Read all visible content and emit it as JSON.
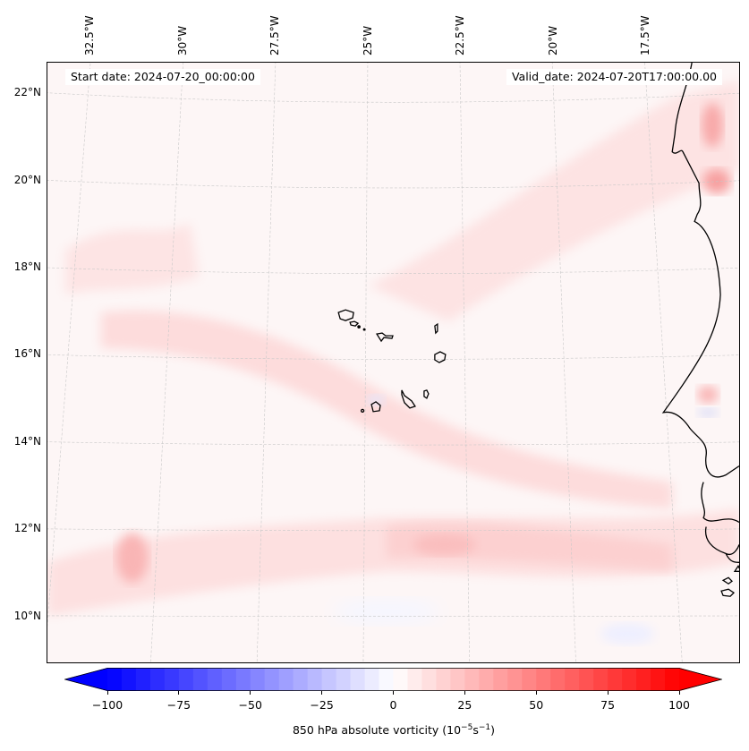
{
  "map": {
    "title_left": "Start date: 2024-07-20_00:00:00",
    "title_right": "Valid_date: 2024-07-20T17:00:00.00",
    "extent": {
      "lon_min": -33.0,
      "lon_max": -15.6,
      "lat_min": 8.8,
      "lat_max": 22.8
    },
    "lon_ticks": [
      {
        "value": -32.5,
        "label": "32.5°W"
      },
      {
        "value": -30.0,
        "label": "30°W"
      },
      {
        "value": -27.5,
        "label": "27.5°W"
      },
      {
        "value": -25.0,
        "label": "25°W"
      },
      {
        "value": -22.5,
        "label": "22.5°W"
      },
      {
        "value": -20.0,
        "label": "20°W"
      },
      {
        "value": -17.5,
        "label": "17.5°W"
      }
    ],
    "lat_ticks": [
      {
        "value": 22,
        "label": "22°N"
      },
      {
        "value": 20,
        "label": "20°N"
      },
      {
        "value": 18,
        "label": "18°N"
      },
      {
        "value": 16,
        "label": "16°N"
      },
      {
        "value": 14,
        "label": "14°N"
      },
      {
        "value": 12,
        "label": "12°N"
      },
      {
        "value": 10,
        "label": "10°N"
      }
    ],
    "features": {
      "cape_verde_islands": true,
      "west_africa_coastline": true
    },
    "vorticity_features": [
      {
        "name": "band-northeast",
        "lon": -21.5,
        "lat": 18.8,
        "value": 10
      },
      {
        "name": "band-diagonal",
        "lon": -26.5,
        "lat": 15.3,
        "value": 10
      },
      {
        "name": "max-coast-north",
        "lon": -16.2,
        "lat": 21.4,
        "value": 25
      },
      {
        "name": "max-coast-mid",
        "lon": -16.2,
        "lat": 20.0,
        "value": 30
      },
      {
        "name": "max-dakar",
        "lon": -16.3,
        "lat": 15.0,
        "value": 20
      },
      {
        "name": "max-west",
        "lon": -30.0,
        "lat": 11.3,
        "value": 25
      },
      {
        "name": "max-southcentral",
        "lon": -22.7,
        "lat": 11.4,
        "value": 20
      },
      {
        "name": "min-dakar",
        "lon": -16.2,
        "lat": 14.6,
        "value": -10
      },
      {
        "name": "min-fogo",
        "lon": -24.4,
        "lat": 14.9,
        "value": -10
      }
    ]
  },
  "colorbar": {
    "label_prefix": "850 hPa absolute vorticity (10",
    "label_exp1": "−5",
    "label_mid": "s",
    "label_exp2": "−1",
    "label_suffix": ")",
    "min": -100,
    "max": 100,
    "step": 5,
    "extend": "both",
    "cmap": "bwr",
    "ticks": [
      {
        "value": -100,
        "label": "−100"
      },
      {
        "value": -75,
        "label": "−75"
      },
      {
        "value": -50,
        "label": "−50"
      },
      {
        "value": -25,
        "label": "−25"
      },
      {
        "value": 0,
        "label": "0"
      },
      {
        "value": 25,
        "label": "25"
      },
      {
        "value": 50,
        "label": "50"
      },
      {
        "value": 75,
        "label": "75"
      },
      {
        "value": 100,
        "label": "100"
      }
    ],
    "colors": {
      "negative_end": "#0000ff",
      "center": "#ffffff",
      "positive_end": "#ff0000"
    }
  }
}
